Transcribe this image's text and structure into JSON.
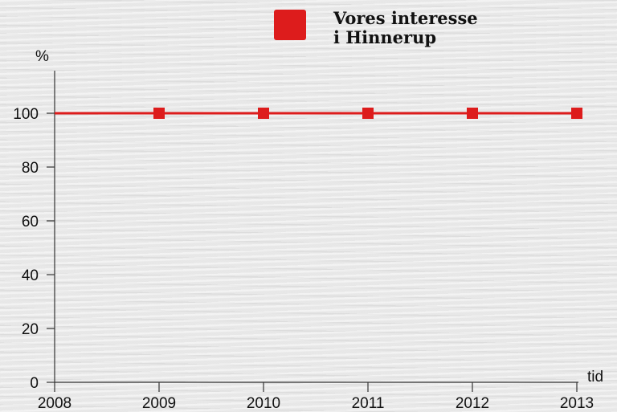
{
  "chart_data": {
    "type": "line",
    "x": [
      "2008",
      "2009",
      "2010",
      "2011",
      "2012",
      "2013"
    ],
    "series": [
      {
        "name_lines": [
          "Vores interesse",
          "i Hinnerup"
        ],
        "color": "#dd1c1c",
        "line_x": [
          2008,
          2013
        ],
        "line_values": [
          100,
          100
        ],
        "marker_x": [
          2009,
          2010,
          2011,
          2012,
          2013
        ],
        "marker_values": [
          100,
          100,
          100,
          100,
          100
        ]
      }
    ],
    "y_ticks": [
      0,
      20,
      40,
      60,
      80,
      100
    ],
    "xlim": [
      2008,
      2013
    ],
    "ylim": [
      0,
      100
    ],
    "ylabel": "%",
    "xlabel": "tid",
    "grid": false,
    "legend_position": "top"
  }
}
